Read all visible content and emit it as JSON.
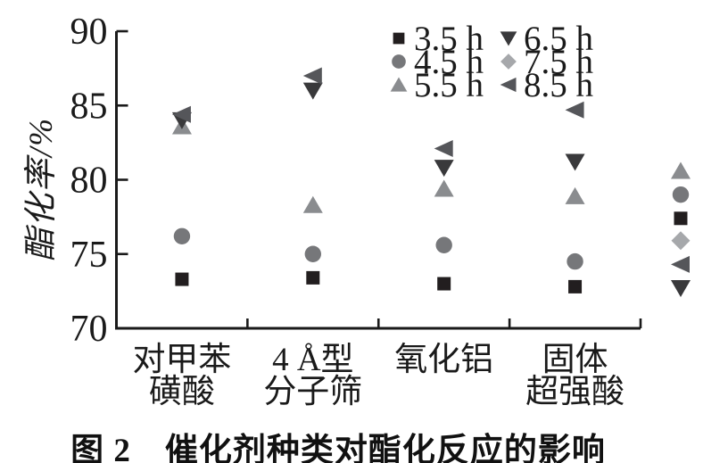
{
  "figure": {
    "caption": "图 2　催化剂种类对酯化反应的影响",
    "ylabel": "酯化率/%"
  },
  "chart_data": {
    "type": "scatter",
    "title": "图2 催化剂种类对酯化反应的影响",
    "xlabel": "",
    "ylabel": "酯化率/%",
    "ylim": [
      70,
      90
    ],
    "yticks": [
      70,
      75,
      80,
      85,
      90
    ],
    "grid": false,
    "legend_position": "top-center-inside",
    "categories": [
      "对甲苯\n磺酸",
      "4 Å型\n分子筛",
      "氧化铝",
      "固体\n超强酸"
    ],
    "series": [
      {
        "name": "3.5 h",
        "marker": "square",
        "color": "#221e1f",
        "values": [
          73.3,
          73.4,
          73.0,
          72.8
        ]
      },
      {
        "name": "4.5 h",
        "marker": "circle",
        "color": "#76777a",
        "values": [
          76.2,
          75.0,
          75.6,
          74.5
        ]
      },
      {
        "name": "5.5 h",
        "marker": "triangle-up",
        "color": "#8a8c8f",
        "values": [
          83.6,
          78.3,
          79.4,
          78.9
        ]
      },
      {
        "name": "6.5 h",
        "marker": "triangle-down",
        "color": "#39393b",
        "values": [
          84.0,
          86.0,
          80.8,
          81.2
        ]
      },
      {
        "name": "7.5 h",
        "marker": "diamond",
        "color": "#a6a8ab",
        "values": [
          null,
          null,
          null,
          null
        ],
        "visible_points": false
      },
      {
        "name": "8.5 h",
        "marker": "triangle-left",
        "color": "#55565a",
        "values": [
          84.4,
          87.0,
          82.1,
          84.7
        ]
      }
    ],
    "right_edge_partial_markers": {
      "description": "column of markers cut off at right edge of scan",
      "items": [
        {
          "marker": "triangle-up",
          "value": 80.6
        },
        {
          "marker": "circle",
          "value": 79.0
        },
        {
          "marker": "square",
          "value": 77.4
        },
        {
          "marker": "diamond",
          "value": 75.9
        },
        {
          "marker": "triangle-left",
          "value": 74.3
        },
        {
          "marker": "triangle-down",
          "value": 72.7
        }
      ]
    },
    "axis_color": "#1a1a1a"
  }
}
